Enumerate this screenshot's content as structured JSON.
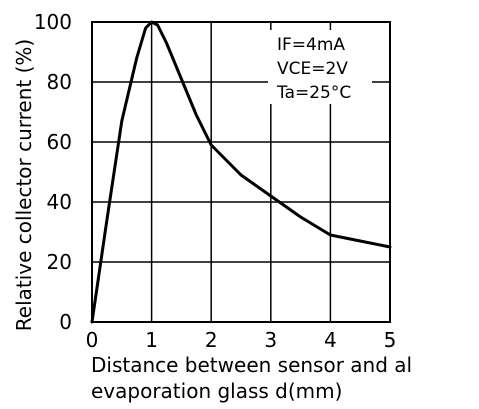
{
  "chart_data": {
    "type": "line",
    "title": "",
    "xlabel_lines": [
      "Distance between sensor and al",
      "evaporation glass d(mm)"
    ],
    "ylabel": "Relative collector current (%)",
    "xlim": [
      0,
      5
    ],
    "ylim": [
      0,
      100
    ],
    "x_ticks": [
      0,
      1,
      2,
      3,
      4,
      5
    ],
    "y_ticks": [
      0,
      20,
      40,
      60,
      80,
      100
    ],
    "x_tick_labels": [
      "0",
      "1",
      "2",
      "3",
      "4",
      "5"
    ],
    "y_tick_labels": [
      "0",
      "20",
      "40",
      "60",
      "80",
      "100"
    ],
    "grid": true,
    "annotations": [
      "IF=4mA",
      "VCE=2V",
      "Ta=25°C"
    ],
    "series": [
      {
        "x": [
          0,
          0.25,
          0.5,
          0.75,
          0.9,
          1.0,
          1.1,
          1.25,
          1.5,
          1.75,
          2.0,
          2.5,
          3.0,
          3.5,
          4.0,
          4.5,
          5.0
        ],
        "y": [
          0,
          34,
          67,
          88,
          98,
          100,
          99,
          93,
          81,
          69,
          59,
          49,
          42,
          35,
          29,
          27,
          25
        ],
        "color": "#000000"
      }
    ]
  }
}
